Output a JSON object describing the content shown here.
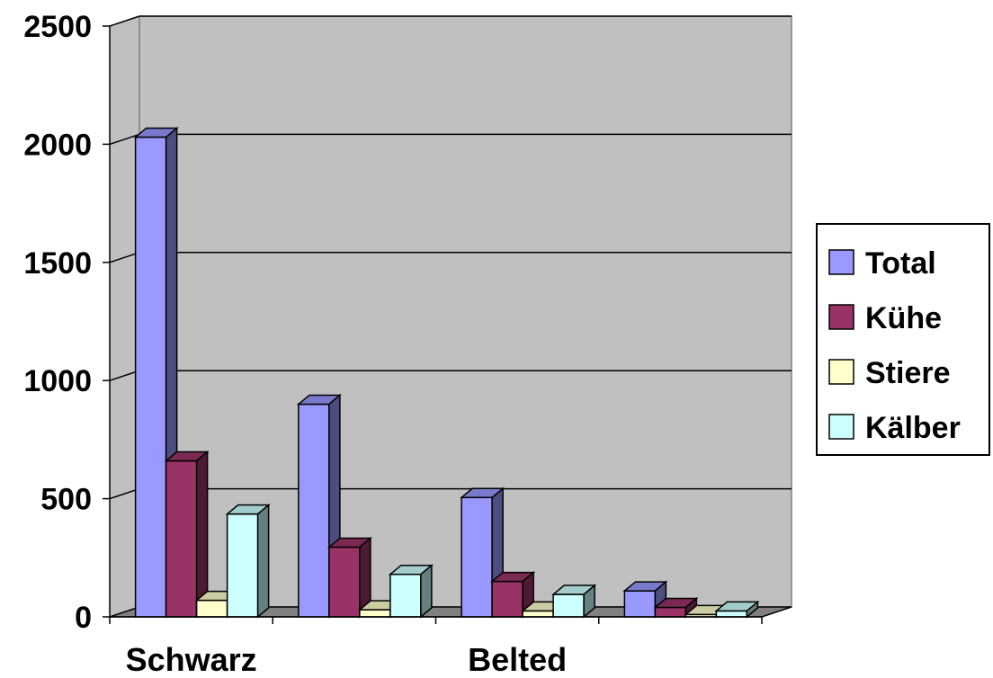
{
  "chart_data": {
    "type": "bar",
    "categories": [
      "Schwarz",
      "",
      "Belted",
      ""
    ],
    "series": [
      {
        "name": "Total",
        "values": [
          2030,
          900,
          505,
          110
        ],
        "color": "#9999ff"
      },
      {
        "name": "Kühe",
        "values": [
          660,
          295,
          150,
          40
        ],
        "color": "#993366"
      },
      {
        "name": "Stiere",
        "values": [
          70,
          30,
          25,
          10
        ],
        "color": "#ffffcc"
      },
      {
        "name": "Kälber",
        "values": [
          435,
          180,
          95,
          25
        ],
        "color": "#ccffff"
      }
    ],
    "yticks": [
      "0",
      "500",
      "1000",
      "1500",
      "2000",
      "2500"
    ],
    "ylim": [
      0,
      2500
    ],
    "grid": true,
    "legend": "right",
    "plot_background": "#c0c0c0",
    "style": "3d-clustered-column"
  }
}
